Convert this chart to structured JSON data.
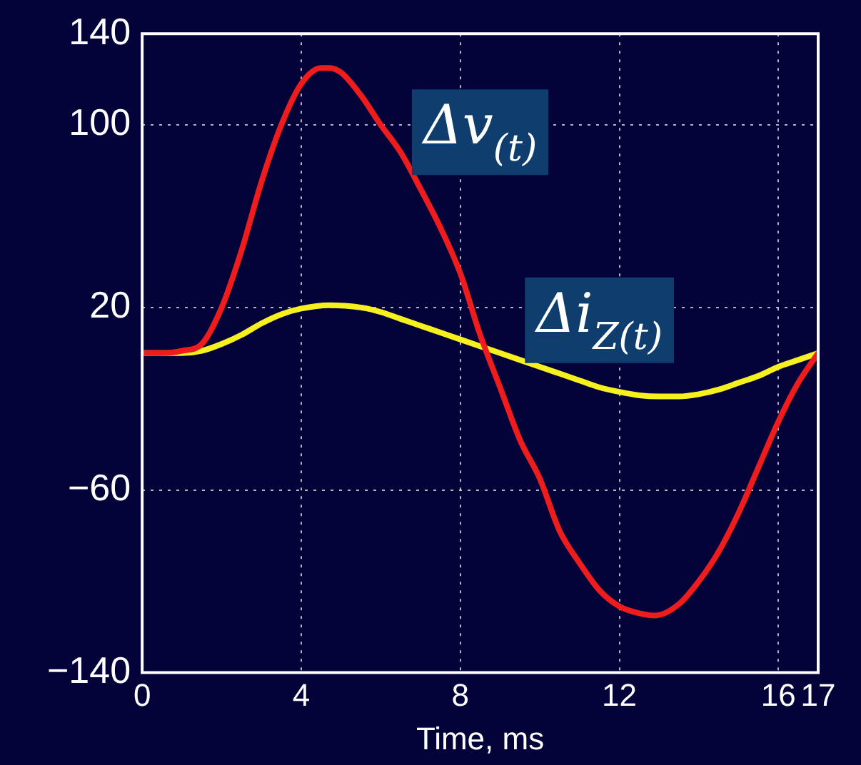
{
  "chart_data": {
    "type": "line",
    "xlabel": "Time, ms",
    "xlim": [
      0,
      17
    ],
    "xticks": [
      0,
      4,
      8,
      12,
      16,
      17
    ],
    "ylim": [
      -140,
      140
    ],
    "yticks": [
      -140,
      -60,
      20,
      100,
      140
    ],
    "grid": true,
    "legend": false,
    "marker": "none",
    "line_style": "solid",
    "series": [
      {
        "name": "Δv$_{(t)}$",
        "color": "#ee1c1c",
        "x": [
          0,
          0.5,
          1,
          1.5,
          2,
          2.5,
          3,
          3.5,
          4,
          4.5,
          4.7,
          5,
          5.5,
          6,
          6.5,
          7,
          7.5,
          8,
          8.5,
          9,
          9.5,
          10,
          10.5,
          11,
          11.5,
          12,
          12.5,
          12.9,
          13.5,
          14,
          14.5,
          15,
          15.5,
          16,
          16.5,
          17
        ],
        "values": [
          0,
          0,
          1,
          4,
          20,
          45,
          75,
          100,
          118,
          125,
          125,
          123,
          113,
          100,
          88,
          72,
          55,
          35,
          8,
          -15,
          -38,
          -55,
          -78,
          -92,
          -104,
          -111,
          -114,
          -115,
          -110,
          -100,
          -87,
          -70,
          -50,
          -30,
          -13,
          0
        ]
      },
      {
        "name": "Δi$_{Z(t)}$",
        "color": "#f5f01e",
        "x": [
          0,
          1,
          1.5,
          2,
          2.5,
          3,
          3.5,
          4,
          4.7,
          5.5,
          6,
          6.5,
          7,
          7.5,
          8,
          8.5,
          9,
          9.5,
          10,
          10.5,
          11,
          11.5,
          12,
          12.5,
          13,
          13.5,
          14,
          14.5,
          15,
          15.5,
          16,
          16.5,
          17
        ],
        "values": [
          0,
          0,
          1,
          4,
          8,
          13,
          17,
          19.5,
          21,
          20,
          18,
          15,
          12,
          9,
          6,
          3,
          0,
          -3,
          -6,
          -9,
          -12,
          -15,
          -17,
          -18.5,
          -19,
          -19,
          -18,
          -16,
          -13,
          -10,
          -6,
          -3,
          0
        ]
      }
    ]
  }
}
